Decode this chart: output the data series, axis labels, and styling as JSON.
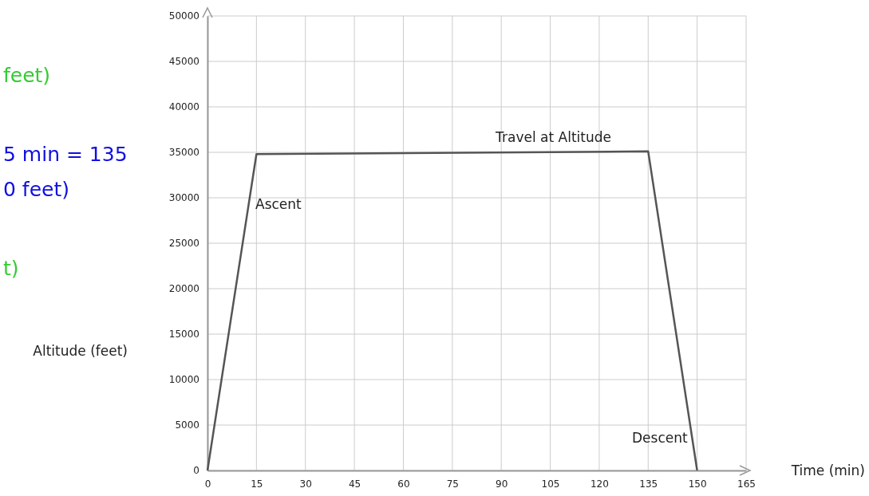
{
  "chart_data": {
    "type": "line",
    "xlabel": "Time (min)",
    "ylabel": "Altitude (feet)",
    "x": [
      0,
      15,
      135,
      150
    ],
    "series": [
      {
        "color": "#555555",
        "values": [
          0,
          34800,
          35100,
          0
        ]
      }
    ],
    "xlim": [
      0,
      165
    ],
    "xticks": [
      0,
      15,
      30,
      45,
      60,
      75,
      90,
      105,
      120,
      135,
      150,
      165
    ],
    "ylim": [
      0,
      50000
    ],
    "yticks": [
      0,
      5000,
      10000,
      15000,
      20000,
      25000,
      30000,
      35000,
      40000,
      45000,
      50000
    ],
    "grid": true,
    "marker": "none",
    "line_style": "solid",
    "annotations": [
      {
        "text": "Travel at Altitude",
        "x": 105,
        "y": 35100
      },
      {
        "text": "Descent",
        "x": 150,
        "y": 2000
      },
      "Ascent",
      "feet)",
      "5 min = 135",
      "0 feet)",
      "t)"
    ]
  }
}
